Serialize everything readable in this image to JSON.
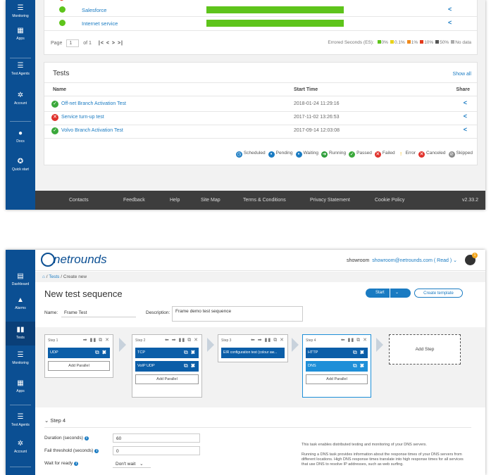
{
  "shot1": {
    "sidebar": [
      {
        "label": "Monitoring",
        "icon": "monitor-icon"
      },
      {
        "label": "Apps",
        "icon": "grid-icon"
      },
      {
        "label": "Test Agents",
        "icon": "server-icon"
      },
      {
        "label": "Account",
        "icon": "gear-icon"
      },
      {
        "label": "Docs",
        "icon": "docs-icon"
      },
      {
        "label": "Quick start",
        "icon": "rocket-icon"
      }
    ],
    "monitors": [
      {
        "name": "Salesforce"
      },
      {
        "name": "Internet service"
      }
    ],
    "pager": {
      "prefix": "Page",
      "page": "1",
      "of": "of 1",
      "controls": "|< < > >|"
    },
    "errored_seconds": {
      "label": "Errored Seconds (ES):",
      "items": [
        {
          "label": "0%",
          "color": "#5ec41b"
        },
        {
          "label": "0.1%",
          "color": "#e8d21a"
        },
        {
          "label": "1%",
          "color": "#f08a1c"
        },
        {
          "label": "10%",
          "color": "#e23a1c"
        },
        {
          "label": "50%",
          "color": "#555555"
        },
        {
          "label": "No data",
          "color": "#aaaaaa"
        }
      ]
    },
    "tests": {
      "title": "Tests",
      "show_all": "Show all",
      "columns": {
        "name": "Name",
        "start": "Start Time",
        "share": "Share"
      },
      "rows": [
        {
          "status": "passed",
          "name": "Off-net Branch Activation Test",
          "start": "2018-01-24 11:29:16"
        },
        {
          "status": "failed",
          "name": "Service turn-up test",
          "start": "2017-11-02 13:26:53"
        },
        {
          "status": "passed",
          "name": "Volvo Branch Activation Test",
          "start": "2017-09-14 12:03:08"
        }
      ],
      "legend": [
        {
          "label": "Scheduled",
          "color": "#1a7bc2",
          "glyph": "◷"
        },
        {
          "label": "Pending",
          "color": "#1a7bc2",
          "glyph": "•"
        },
        {
          "label": "Waiting",
          "color": "#1a7bc2",
          "glyph": "•"
        },
        {
          "label": "Running",
          "color": "#2e9e3a",
          "glyph": "➜"
        },
        {
          "label": "Passed",
          "color": "#3aa83a",
          "glyph": "✓"
        },
        {
          "label": "Failed",
          "color": "#e0302a",
          "glyph": "✕"
        },
        {
          "label": "Error",
          "color": "#f2b705",
          "glyph": "!"
        },
        {
          "label": "Canceled",
          "color": "#e0302a",
          "glyph": "✕"
        },
        {
          "label": "Skipped",
          "color": "#888888",
          "glyph": "⊘"
        }
      ]
    },
    "footer": {
      "links": [
        "Contacts",
        "Feedback",
        "Help",
        "Site Map",
        "Terms & Conditions",
        "Privacy Statement",
        "Cookie Policy"
      ],
      "version": "v2.33.2"
    }
  },
  "shot2": {
    "logo": "netrounds",
    "user": {
      "org": "showroom",
      "email": "showroom@netrounds.com ( Read )",
      "notifications": "1"
    },
    "sidebar": [
      {
        "label": "Dashboard",
        "icon": "dashboard-icon"
      },
      {
        "label": "Alarms",
        "icon": "alarm-icon"
      },
      {
        "label": "Tests",
        "icon": "tests-icon"
      },
      {
        "label": "Monitoring",
        "icon": "monitor-icon"
      },
      {
        "label": "Apps",
        "icon": "grid-icon"
      },
      {
        "label": "Test Agents",
        "icon": "server-icon"
      },
      {
        "label": "Account",
        "icon": "gear-icon"
      }
    ],
    "breadcrumb": {
      "tests": "Tests",
      "sep": "/",
      "current": "Create new"
    },
    "title": "New test sequence",
    "buttons": {
      "start": "Start",
      "create_template": "Create template"
    },
    "form": {
      "name_label": "Name:",
      "name_value": "Frame Test",
      "desc_label": "Description:",
      "desc_value": "Frame demo test sequence"
    },
    "steps": [
      {
        "label": "Step 1",
        "tiles": [
          "UDP"
        ],
        "add_parallel": "Add Parallel"
      },
      {
        "label": "Step 2",
        "tiles": [
          "TCP",
          "VoIP UDP"
        ],
        "add_parallel": "Add Parallel"
      },
      {
        "label": "Step 3",
        "tiles": [
          "EIR configuration test (colour aw..."
        ],
        "add_parallel": ""
      },
      {
        "label": "Step 4",
        "tiles": [
          "HTTP",
          "DNS"
        ],
        "add_parallel": "Add Parallel"
      }
    ],
    "add_step": "Add Step",
    "section": "Step 4",
    "fields": [
      {
        "label": "Duration (seconds)",
        "value": "60"
      },
      {
        "label": "Fail threshold (seconds)",
        "value": "0"
      },
      {
        "label": "Wait for ready",
        "value": "Don't wait"
      }
    ],
    "description": [
      "This task enables distributed testing and monitoring of your DNS servers.",
      "Running a DNS task provides information about the response times of your DNS servers from different locations. High DNS response times translate into high response times for all services that use DNS to resolve IP addresses, such as web surfing."
    ]
  }
}
